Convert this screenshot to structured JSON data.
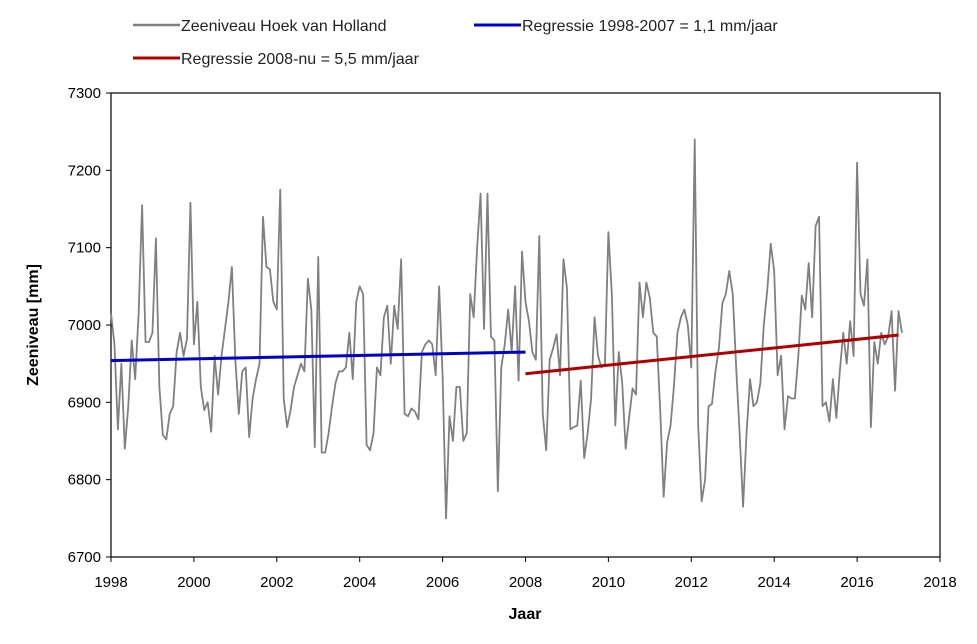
{
  "chart_data": {
    "type": "line",
    "xlabel": "Jaar",
    "ylabel": "Zeeniveau [mm]",
    "xlim": [
      1998,
      2018
    ],
    "ylim": [
      6700,
      7300
    ],
    "xticks": [
      1998,
      2000,
      2002,
      2004,
      2006,
      2008,
      2010,
      2012,
      2014,
      2016,
      2018
    ],
    "yticks": [
      6700,
      6800,
      6900,
      7000,
      7100,
      7200,
      7300
    ],
    "legend_position": "top",
    "series": [
      {
        "name": "Zeeniveau Hoek van Holland",
        "color": "#808080",
        "x_start": 1998.0,
        "x_step": 0.08333,
        "values": [
          7015,
          6975,
          6865,
          6950,
          6840,
          6895,
          6980,
          6930,
          7015,
          7155,
          6978,
          6978,
          6990,
          7112,
          6920,
          6858,
          6852,
          6885,
          6895,
          6965,
          6990,
          6960,
          6982,
          7158,
          6975,
          7030,
          6920,
          6890,
          6900,
          6862,
          6960,
          6910,
          6960,
          6995,
          7030,
          7075,
          6955,
          6885,
          6940,
          6945,
          6855,
          6905,
          6930,
          6950,
          7140,
          7075,
          7072,
          7030,
          7020,
          7175,
          6905,
          6868,
          6890,
          6920,
          6935,
          6950,
          6940,
          7060,
          7020,
          6842,
          7088,
          6835,
          6835,
          6860,
          6895,
          6925,
          6940,
          6940,
          6945,
          6990,
          6930,
          7030,
          7050,
          7040,
          6845,
          6838,
          6860,
          6945,
          6935,
          7010,
          7025,
          6950,
          7025,
          6995,
          7085,
          6885,
          6882,
          6892,
          6888,
          6878,
          6965,
          6975,
          6980,
          6975,
          6935,
          7050,
          6935,
          6750,
          6882,
          6850,
          6920,
          6920,
          6850,
          6860,
          7040,
          7010,
          7100,
          7170,
          6995,
          7170,
          6985,
          6980,
          6785,
          6945,
          6975,
          7020,
          6965,
          7050,
          6928,
          7095,
          7030,
          7005,
          6965,
          6955,
          7115,
          6885,
          6838,
          6955,
          6970,
          6988,
          6935,
          7085,
          7048,
          6865,
          6868,
          6870,
          6928,
          6828,
          6860,
          6905,
          7010,
          6960,
          6945,
          6950,
          7120,
          7040,
          6870,
          6965,
          6925,
          6840,
          6880,
          6918,
          6910,
          7055,
          7010,
          7055,
          7035,
          6990,
          6985,
          6890,
          6778,
          6848,
          6870,
          6922,
          6990,
          7010,
          7020,
          7000,
          6945,
          7240,
          6870,
          6772,
          6800,
          6895,
          6898,
          6940,
          6970,
          7028,
          7040,
          7070,
          7040,
          6945,
          6860,
          6765,
          6860,
          6930,
          6895,
          6900,
          6925,
          7000,
          7045,
          7105,
          7070,
          6935,
          6960,
          6865,
          6908,
          6905,
          6905,
          6960,
          7038,
          7020,
          7080,
          7010,
          7128,
          7140,
          6895,
          6900,
          6875,
          6930,
          6880,
          6940,
          6990,
          6950,
          7005,
          6960,
          7210,
          7040,
          7025,
          7085,
          6868,
          6978,
          6950,
          6990,
          6975,
          6985,
          7018,
          6915,
          7018,
          6990
        ]
      },
      {
        "name": "Regressie 1998-2007 = 1,1 mm/jaar",
        "color": "#0000cc",
        "x": [
          1998.0,
          2008.0
        ],
        "values": [
          6954,
          6965
        ]
      },
      {
        "name": "Regressie 2008-nu = 5,5 mm/jaar",
        "color": "#b00000",
        "x": [
          2008.0,
          2017.0
        ],
        "values": [
          6937,
          6987
        ]
      }
    ]
  }
}
